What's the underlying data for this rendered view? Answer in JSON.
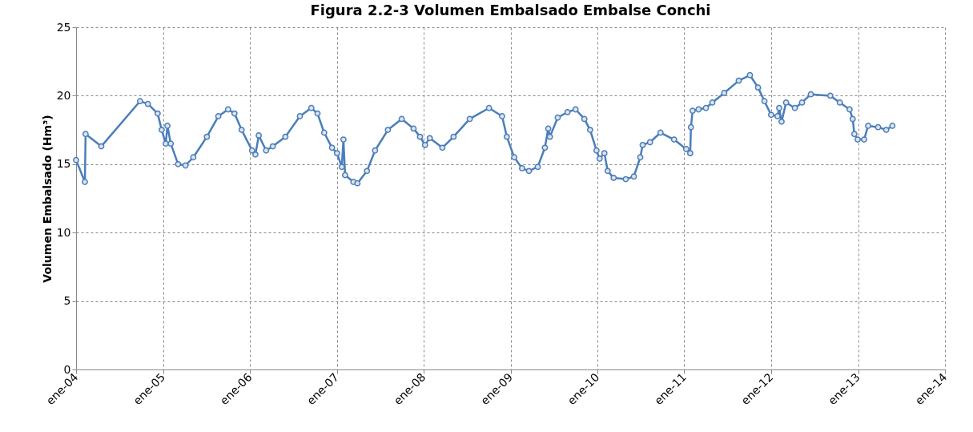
{
  "chart_data": {
    "type": "line",
    "title": "Figura 2.2-3          Volumen Embalsado Embalse Conchi",
    "ylabel": "Volumen Embalsado (Hm³)",
    "x": [
      "2004-01-01",
      "2004-02-07",
      "2004-02-10",
      "2004-04-16",
      "2004-09-26",
      "2004-10-29",
      "2004-12-09",
      "2004-12-26",
      "2005-01-12",
      "2005-01-19",
      "2005-02-02",
      "2005-03-05",
      "2005-04-05",
      "2005-05-08",
      "2005-07-04",
      "2005-08-21",
      "2005-10-01",
      "2005-10-28",
      "2005-11-27",
      "2006-01-10",
      "2006-01-24",
      "2006-02-07",
      "2006-03-10",
      "2006-04-07",
      "2006-05-30",
      "2006-07-30",
      "2006-09-16",
      "2006-10-12",
      "2006-11-09",
      "2006-12-12",
      "2007-01-02",
      "2007-01-22",
      "2007-01-29",
      "2007-02-05",
      "2007-03-12",
      "2007-03-29",
      "2007-05-08",
      "2007-06-11",
      "2007-08-04",
      "2007-10-01",
      "2007-11-20",
      "2007-12-17",
      "2008-01-07",
      "2008-01-27",
      "2008-03-20",
      "2008-05-06",
      "2008-07-13",
      "2008-10-02",
      "2008-11-26",
      "2008-12-16",
      "2009-01-16",
      "2009-02-18",
      "2009-03-19",
      "2009-04-25",
      "2009-05-25",
      "2009-06-08",
      "2009-06-15",
      "2009-07-18",
      "2009-08-28",
      "2009-10-01",
      "2009-11-07",
      "2009-12-01",
      "2009-12-28",
      "2010-01-10",
      "2010-01-30",
      "2010-02-13",
      "2010-03-10",
      "2010-04-30",
      "2010-06-03",
      "2010-06-30",
      "2010-07-10",
      "2010-08-10",
      "2010-09-23",
      "2010-11-19",
      "2011-01-09",
      "2011-01-26",
      "2011-01-29",
      "2011-02-05",
      "2011-03-02",
      "2011-04-02",
      "2011-04-29",
      "2011-06-18",
      "2011-08-18",
      "2011-10-04",
      "2011-11-07",
      "2011-12-04",
      "2012-01-01",
      "2012-01-28",
      "2012-02-04",
      "2012-02-14",
      "2012-03-04",
      "2012-04-10",
      "2012-05-10",
      "2012-06-16",
      "2012-09-06",
      "2012-10-16",
      "2012-11-26",
      "2012-12-09",
      "2012-12-16",
      "2012-12-30",
      "2013-01-26",
      "2013-02-12",
      "2013-03-26",
      "2013-04-29",
      "2013-05-25"
    ],
    "series": [
      {
        "color": "#4a7ebb",
        "values": [
          15.3,
          13.7,
          17.2,
          16.3,
          19.6,
          19.4,
          18.7,
          17.5,
          16.5,
          17.8,
          16.5,
          15.0,
          14.9,
          15.5,
          17.0,
          18.5,
          19.0,
          18.7,
          17.5,
          16.0,
          15.7,
          17.1,
          16.0,
          16.3,
          17.0,
          18.5,
          19.1,
          18.7,
          17.3,
          16.2,
          15.8,
          14.8,
          16.8,
          14.2,
          13.7,
          13.6,
          14.5,
          16.0,
          17.5,
          18.3,
          17.6,
          17.0,
          16.4,
          16.9,
          16.2,
          17.0,
          18.3,
          19.1,
          18.5,
          17.0,
          15.5,
          14.7,
          14.5,
          14.8,
          16.2,
          17.6,
          17.0,
          18.4,
          18.8,
          19.0,
          18.3,
          17.5,
          16.0,
          15.4,
          15.8,
          14.5,
          14.0,
          13.9,
          14.1,
          15.5,
          16.4,
          16.6,
          17.3,
          16.8,
          16.1,
          15.8,
          17.7,
          18.9,
          19.0,
          19.1,
          19.5,
          20.2,
          21.1,
          21.5,
          20.6,
          19.6,
          18.6,
          18.5,
          19.1,
          18.1,
          19.5,
          19.1,
          19.5,
          20.1,
          20.0,
          19.5,
          19.0,
          18.3,
          17.2,
          16.8,
          16.8,
          17.8,
          17.7,
          17.5,
          17.8
        ]
      }
    ],
    "xlim": [
      "2004-01-01",
      "2014-01-01"
    ],
    "xticks": [
      {
        "value": "2004-01-01",
        "label": "ene-04"
      },
      {
        "value": "2005-01-01",
        "label": "ene-05"
      },
      {
        "value": "2006-01-01",
        "label": "ene-06"
      },
      {
        "value": "2007-01-01",
        "label": "ene-07"
      },
      {
        "value": "2008-01-01",
        "label": "ene-08"
      },
      {
        "value": "2009-01-01",
        "label": "ene-09"
      },
      {
        "value": "2010-01-01",
        "label": "ene-10"
      },
      {
        "value": "2011-01-01",
        "label": "ene-11"
      },
      {
        "value": "2012-01-01",
        "label": "ene-12"
      },
      {
        "value": "2013-01-01",
        "label": "ene-13"
      },
      {
        "value": "2014-01-01",
        "label": "ene-14"
      }
    ],
    "ylim": [
      0,
      25
    ],
    "yticks": [
      0,
      5,
      10,
      15,
      20,
      25
    ],
    "grid": true,
    "marker": "circle",
    "line_style": "solid"
  }
}
